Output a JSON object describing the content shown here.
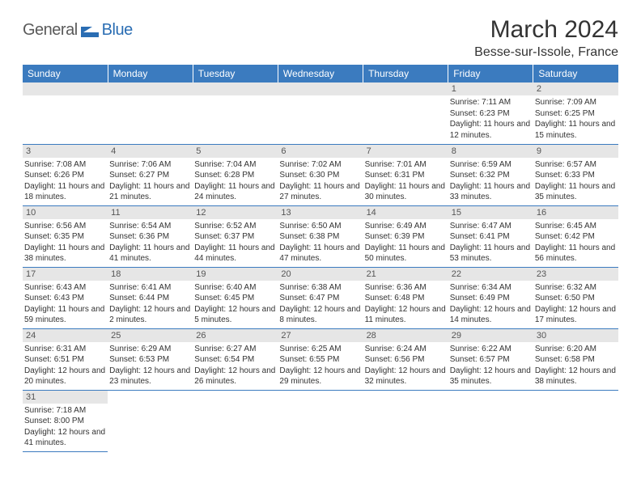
{
  "logo": {
    "text1": "General",
    "text2": "Blue",
    "text1_color": "#5a5a5a",
    "text2_color": "#2a6db3",
    "icon_color": "#2a6db3"
  },
  "title": "March 2024",
  "location": "Besse-sur-Issole, France",
  "colors": {
    "header_bg": "#3b7bbf",
    "header_text": "#ffffff",
    "daynum_bg": "#e6e6e6",
    "daynum_text": "#555555",
    "body_text": "#333333",
    "row_divider": "#3b7bbf",
    "page_bg": "#ffffff"
  },
  "typography": {
    "title_fontsize": 30,
    "location_fontsize": 16,
    "header_fontsize": 12,
    "daynum_fontsize": 11,
    "info_fontsize": 10
  },
  "layout": {
    "columns": 7,
    "rows": 6
  },
  "weekdays": [
    "Sunday",
    "Monday",
    "Tuesday",
    "Wednesday",
    "Thursday",
    "Friday",
    "Saturday"
  ],
  "days": [
    null,
    null,
    null,
    null,
    null,
    {
      "n": "1",
      "sunrise": "7:11 AM",
      "sunset": "6:23 PM",
      "daylight": "11 hours and 12 minutes."
    },
    {
      "n": "2",
      "sunrise": "7:09 AM",
      "sunset": "6:25 PM",
      "daylight": "11 hours and 15 minutes."
    },
    {
      "n": "3",
      "sunrise": "7:08 AM",
      "sunset": "6:26 PM",
      "daylight": "11 hours and 18 minutes."
    },
    {
      "n": "4",
      "sunrise": "7:06 AM",
      "sunset": "6:27 PM",
      "daylight": "11 hours and 21 minutes."
    },
    {
      "n": "5",
      "sunrise": "7:04 AM",
      "sunset": "6:28 PM",
      "daylight": "11 hours and 24 minutes."
    },
    {
      "n": "6",
      "sunrise": "7:02 AM",
      "sunset": "6:30 PM",
      "daylight": "11 hours and 27 minutes."
    },
    {
      "n": "7",
      "sunrise": "7:01 AM",
      "sunset": "6:31 PM",
      "daylight": "11 hours and 30 minutes."
    },
    {
      "n": "8",
      "sunrise": "6:59 AM",
      "sunset": "6:32 PM",
      "daylight": "11 hours and 33 minutes."
    },
    {
      "n": "9",
      "sunrise": "6:57 AM",
      "sunset": "6:33 PM",
      "daylight": "11 hours and 35 minutes."
    },
    {
      "n": "10",
      "sunrise": "6:56 AM",
      "sunset": "6:35 PM",
      "daylight": "11 hours and 38 minutes."
    },
    {
      "n": "11",
      "sunrise": "6:54 AM",
      "sunset": "6:36 PM",
      "daylight": "11 hours and 41 minutes."
    },
    {
      "n": "12",
      "sunrise": "6:52 AM",
      "sunset": "6:37 PM",
      "daylight": "11 hours and 44 minutes."
    },
    {
      "n": "13",
      "sunrise": "6:50 AM",
      "sunset": "6:38 PM",
      "daylight": "11 hours and 47 minutes."
    },
    {
      "n": "14",
      "sunrise": "6:49 AM",
      "sunset": "6:39 PM",
      "daylight": "11 hours and 50 minutes."
    },
    {
      "n": "15",
      "sunrise": "6:47 AM",
      "sunset": "6:41 PM",
      "daylight": "11 hours and 53 minutes."
    },
    {
      "n": "16",
      "sunrise": "6:45 AM",
      "sunset": "6:42 PM",
      "daylight": "11 hours and 56 minutes."
    },
    {
      "n": "17",
      "sunrise": "6:43 AM",
      "sunset": "6:43 PM",
      "daylight": "11 hours and 59 minutes."
    },
    {
      "n": "18",
      "sunrise": "6:41 AM",
      "sunset": "6:44 PM",
      "daylight": "12 hours and 2 minutes."
    },
    {
      "n": "19",
      "sunrise": "6:40 AM",
      "sunset": "6:45 PM",
      "daylight": "12 hours and 5 minutes."
    },
    {
      "n": "20",
      "sunrise": "6:38 AM",
      "sunset": "6:47 PM",
      "daylight": "12 hours and 8 minutes."
    },
    {
      "n": "21",
      "sunrise": "6:36 AM",
      "sunset": "6:48 PM",
      "daylight": "12 hours and 11 minutes."
    },
    {
      "n": "22",
      "sunrise": "6:34 AM",
      "sunset": "6:49 PM",
      "daylight": "12 hours and 14 minutes."
    },
    {
      "n": "23",
      "sunrise": "6:32 AM",
      "sunset": "6:50 PM",
      "daylight": "12 hours and 17 minutes."
    },
    {
      "n": "24",
      "sunrise": "6:31 AM",
      "sunset": "6:51 PM",
      "daylight": "12 hours and 20 minutes."
    },
    {
      "n": "25",
      "sunrise": "6:29 AM",
      "sunset": "6:53 PM",
      "daylight": "12 hours and 23 minutes."
    },
    {
      "n": "26",
      "sunrise": "6:27 AM",
      "sunset": "6:54 PM",
      "daylight": "12 hours and 26 minutes."
    },
    {
      "n": "27",
      "sunrise": "6:25 AM",
      "sunset": "6:55 PM",
      "daylight": "12 hours and 29 minutes."
    },
    {
      "n": "28",
      "sunrise": "6:24 AM",
      "sunset": "6:56 PM",
      "daylight": "12 hours and 32 minutes."
    },
    {
      "n": "29",
      "sunrise": "6:22 AM",
      "sunset": "6:57 PM",
      "daylight": "12 hours and 35 minutes."
    },
    {
      "n": "30",
      "sunrise": "6:20 AM",
      "sunset": "6:58 PM",
      "daylight": "12 hours and 38 minutes."
    },
    {
      "n": "31",
      "sunrise": "7:18 AM",
      "sunset": "8:00 PM",
      "daylight": "12 hours and 41 minutes."
    },
    null,
    null,
    null,
    null,
    null,
    null
  ],
  "labels": {
    "sunrise": "Sunrise:",
    "sunset": "Sunset:",
    "daylight": "Daylight:"
  }
}
